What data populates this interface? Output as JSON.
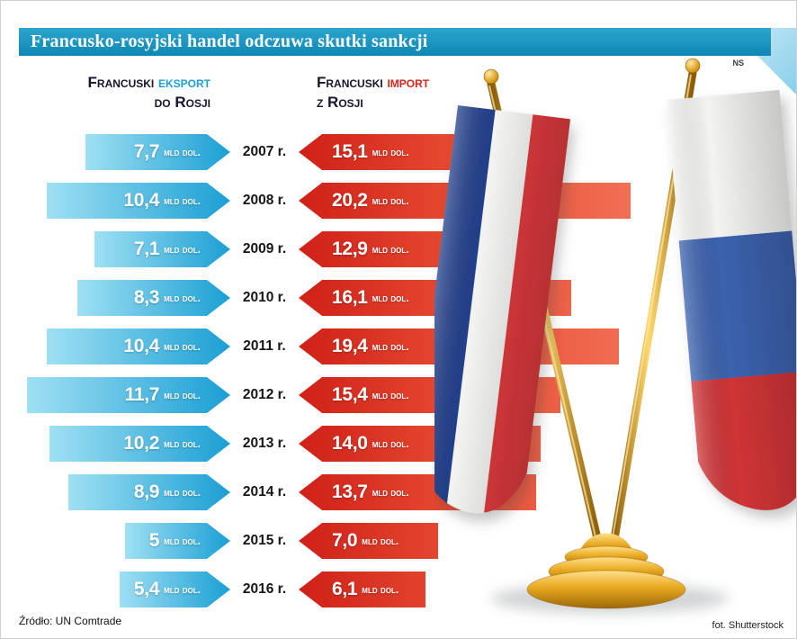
{
  "header": {
    "title": "Francusko-rosyjski handel odczuwa skutki sankcji",
    "bar_color": "#1793bd"
  },
  "corner_label": "NS",
  "columns": {
    "export": {
      "brand": "Francuski",
      "word": "eksport",
      "line2": "do Rosji",
      "accent": "#1b9fd4"
    },
    "import": {
      "brand": "Francuski",
      "word": "import",
      "line2": "z Rosji",
      "accent": "#d9251b"
    }
  },
  "chart_data": {
    "type": "bar",
    "orientation": "horizontal-diverging",
    "unit_label": "mld dol.",
    "categories": [
      "2007 r.",
      "2008 r.",
      "2009 r.",
      "2010 r.",
      "2011 r.",
      "2012 r.",
      "2013 r.",
      "2014 r.",
      "2015 r.",
      "2016 r."
    ],
    "series": [
      {
        "name": "Francuski eksport do Rosji",
        "color": "#1b9fd4",
        "values": [
          7.7,
          10.4,
          7.1,
          8.3,
          10.4,
          11.7,
          10.2,
          8.9,
          5,
          5.4
        ],
        "labels": [
          "7,7",
          "10,4",
          "7,1",
          "8,3",
          "10,4",
          "11,7",
          "10,2",
          "8,9",
          "5",
          "5,4"
        ]
      },
      {
        "name": "Francuski import z Rosji",
        "color": "#d9251b",
        "values": [
          15.1,
          20.2,
          12.9,
          16.1,
          19.4,
          15.4,
          14.0,
          13.7,
          7.0,
          6.1
        ],
        "labels": [
          "15,1",
          "20,2",
          "12,9",
          "16,1",
          "19,4",
          "15,4",
          "14,0",
          "13,7",
          "7,0",
          "6,1"
        ]
      }
    ],
    "legend_position": "top",
    "grid": false
  },
  "decor": {
    "gold": "#d99a16",
    "france_colors": [
      "#24418c",
      "#f3f3f1",
      "#df3a3e"
    ],
    "russia_colors": [
      "#f3f3f1",
      "#3c62ae",
      "#cf3436"
    ]
  },
  "footer": {
    "source": "Źródło: UN Comtrade",
    "credit": "fot. Shutterstock"
  }
}
